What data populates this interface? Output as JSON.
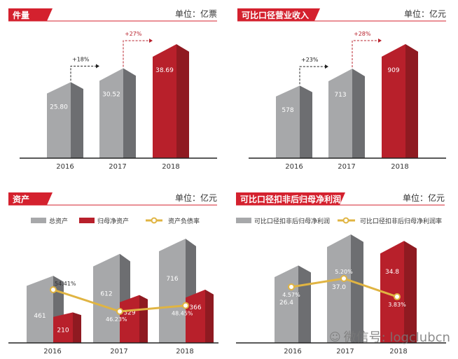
{
  "colors": {
    "red": "#b8202b",
    "red_side": "#8f1a21",
    "gray": "#a7a8aa",
    "gray_side": "#6d6e71",
    "line": "#e0b442",
    "header": "#d4212e"
  },
  "chart_data": [
    {
      "type": "bar",
      "title": "件量",
      "unit": "单位：亿票",
      "categories": [
        "2016",
        "2017",
        "2018"
      ],
      "values": [
        25.8,
        30.52,
        38.69
      ],
      "value_labels": [
        "25.80",
        "30.52",
        "38.69"
      ],
      "highlight": [
        false,
        false,
        true
      ],
      "growth": [
        "+18%",
        "+27%"
      ]
    },
    {
      "type": "bar",
      "title": "可比口径营业收入",
      "unit": "单位：亿元",
      "categories": [
        "2016",
        "2017",
        "2018"
      ],
      "values": [
        578,
        713,
        909
      ],
      "value_labels": [
        "578",
        "713",
        "909"
      ],
      "highlight": [
        false,
        false,
        true
      ],
      "growth": [
        "+23%",
        "+28%"
      ]
    },
    {
      "type": "bar+line",
      "title": "资产",
      "unit": "单位：亿元",
      "categories": [
        "2016",
        "2017",
        "2018"
      ],
      "series": [
        {
          "name": "总资产",
          "values": [
            461,
            612,
            716
          ],
          "labels": [
            "461",
            "612",
            "716"
          ]
        },
        {
          "name": "归母净资产",
          "values": [
            210,
            329,
            366
          ],
          "labels": [
            "210",
            "329",
            "366"
          ]
        },
        {
          "name": "资产负债率",
          "values": [
            54.41,
            46.23,
            48.45
          ],
          "labels": [
            "54.41%",
            "46.23%",
            "48.45%"
          ]
        }
      ]
    },
    {
      "type": "bar+line",
      "title": "可比口径扣非后归母净利润",
      "unit": "单位：亿元",
      "categories": [
        "2016",
        "2017",
        "2018"
      ],
      "highlight": [
        false,
        false,
        true
      ],
      "series": [
        {
          "name": "可比口径扣非后归母净利润",
          "values": [
            26.4,
            37.0,
            34.8
          ],
          "labels": [
            "26.4",
            "37.0",
            "34.8"
          ]
        },
        {
          "name": "可比口径扣非后归母净利润率",
          "values": [
            4.57,
            5.2,
            3.83
          ],
          "labels": [
            "4.57%",
            "5.20%",
            "3.83%"
          ]
        }
      ]
    }
  ],
  "watermark": {
    "icon": "wechat-icon",
    "text": "微信号: logclubcn"
  }
}
